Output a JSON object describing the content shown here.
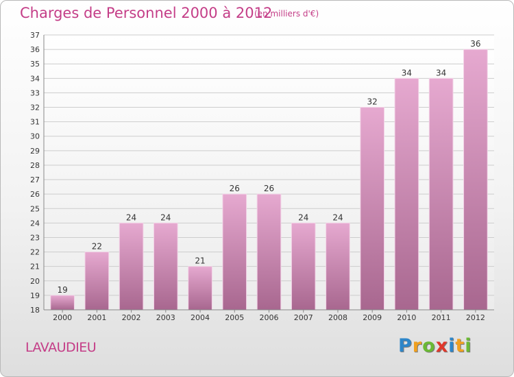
{
  "header": {
    "title": "Charges de Personnel 2000 à 2012",
    "subtitle": "(en milliers d'€)"
  },
  "footer": {
    "commune": "LAVAUDIEU",
    "logo_letters": [
      "P",
      "r",
      "o",
      "x",
      "i",
      "t",
      "i"
    ],
    "logo_colors": [
      "#2e86c9",
      "#f0a020",
      "#6bb935",
      "#e0382b",
      "#2e86c9",
      "#f0a020",
      "#6bb935"
    ]
  },
  "colors": {
    "title": "#c43d87",
    "bar_top": "#e6a9d0",
    "bar_bottom": "#a8678f",
    "grid": "#cccccc"
  },
  "chart_data": {
    "type": "bar",
    "title": "Charges de Personnel 2000 à 2012",
    "subtitle": "(en milliers d'€)",
    "categories": [
      "2000",
      "2001",
      "2002",
      "2003",
      "2004",
      "2005",
      "2006",
      "2007",
      "2008",
      "2009",
      "2010",
      "2011",
      "2012"
    ],
    "values": [
      19,
      22,
      24,
      24,
      21,
      26,
      26,
      24,
      24,
      32,
      34,
      34,
      36
    ],
    "ylim": [
      18,
      37
    ],
    "ytick_step": 1,
    "grid": "horizontal",
    "data_labels": true,
    "legend": "none"
  }
}
